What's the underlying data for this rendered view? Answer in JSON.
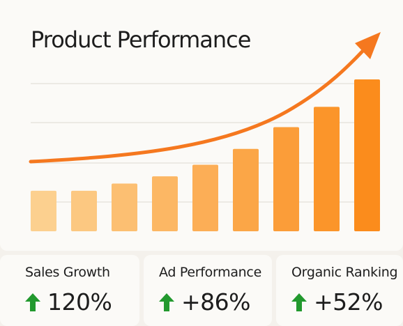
{
  "colors": {
    "bar_light": "#fcd08f",
    "bar_dark": "#fb8c1c",
    "trend_line": "#f5781f",
    "up_arrow": "#22992e",
    "gridline": "#e8e4de"
  },
  "chart_data": {
    "type": "bar",
    "title": "Product Performance",
    "categories": [
      "",
      "",
      "",
      "",
      "",
      "",
      "",
      "",
      ""
    ],
    "values": [
      28,
      28,
      33,
      38,
      46,
      57,
      72,
      86,
      105
    ],
    "ylim": [
      0,
      105
    ],
    "grid": true,
    "trend_line": {
      "shape": "exponential",
      "arrow": true,
      "icon": "upward-trend-arrow"
    }
  },
  "stats": [
    {
      "label": "Sales Growth",
      "value": "120%",
      "icon": "arrow-up-icon"
    },
    {
      "label": "Ad Performance",
      "value": "+86%",
      "icon": "arrow-up-icon"
    },
    {
      "label": "Organic Ranking",
      "value": "+52%",
      "icon": "arrow-up-icon"
    }
  ]
}
